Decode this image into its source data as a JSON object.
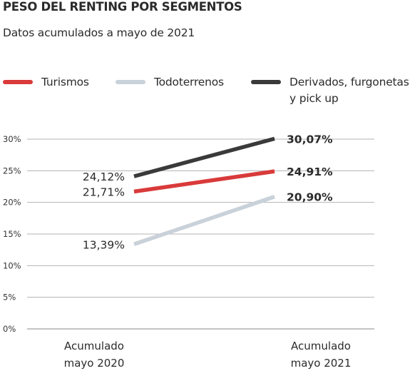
{
  "title": "PESO DEL RENTING POR SEGMENTOS",
  "subtitle": "Datos acumulados a mayo de 2021",
  "chart_data": {
    "type": "line",
    "x": [
      "Acumulado\nmayo 2020",
      "Acumulado\nmayo 2021"
    ],
    "ylim": [
      0,
      30
    ],
    "yticks": [
      0,
      5,
      10,
      15,
      20,
      25,
      30
    ],
    "ytick_labels": [
      "0%",
      "5%",
      "10%",
      "15%",
      "20%",
      "25%",
      "30%"
    ],
    "grid": true,
    "legend_position": "top",
    "series": [
      {
        "name": "Turismos",
        "color": "#d93a3a",
        "values": [
          21.71,
          24.91
        ],
        "labels": [
          "21,71%",
          "24,91%"
        ]
      },
      {
        "name": "Todoterrenos",
        "color": "#c9d1d9",
        "values": [
          13.39,
          20.9
        ],
        "labels": [
          "13,39%",
          "20,90%"
        ]
      },
      {
        "name": "Derivados, furgonetas\ny pick up",
        "color": "#3a3a3a",
        "values": [
          24.12,
          30.07
        ],
        "labels": [
          "24,12%",
          "30,07%"
        ]
      }
    ]
  }
}
